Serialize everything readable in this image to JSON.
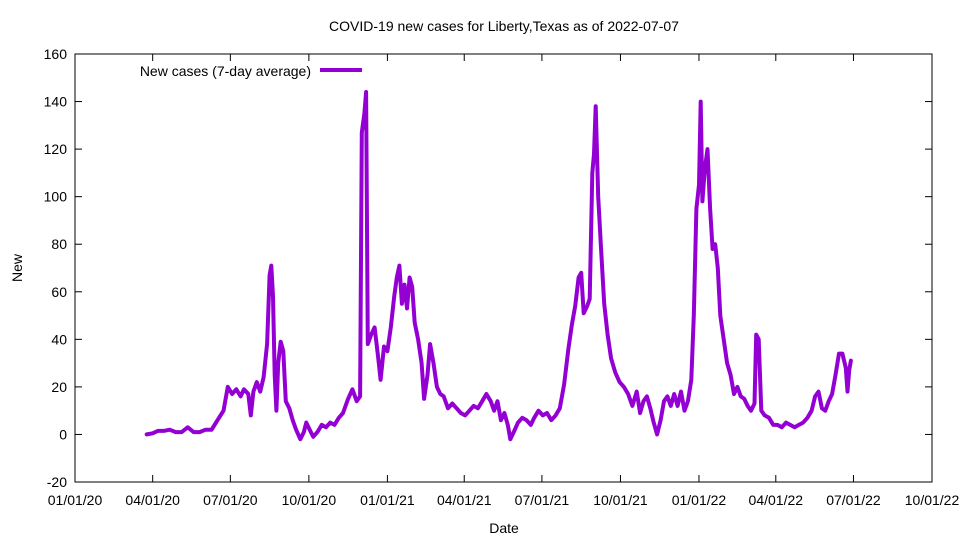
{
  "chart_data": {
    "type": "line",
    "title": "COVID-19 new cases for Liberty,Texas as of 2022-07-07",
    "xlabel": "Date",
    "ylabel": "New",
    "x_ticks": [
      "01/01/20",
      "04/01/20",
      "07/01/20",
      "10/01/20",
      "01/01/21",
      "04/01/21",
      "07/01/21",
      "10/01/21",
      "01/01/22",
      "04/01/22",
      "07/01/22",
      "10/01/22"
    ],
    "xlim": [
      "2020-01-01",
      "2022-10-01"
    ],
    "ylim": [
      -20,
      160
    ],
    "y_ticks": [
      -20,
      0,
      20,
      40,
      60,
      80,
      100,
      120,
      140,
      160
    ],
    "legend_position": "top-left",
    "line_color": "#9400d3",
    "series": [
      {
        "name": "New cases (7-day average)",
        "points": [
          [
            "2020-03-25",
            0
          ],
          [
            "2020-04-01",
            0.5
          ],
          [
            "2020-04-07",
            1.5
          ],
          [
            "2020-04-14",
            1.5
          ],
          [
            "2020-04-21",
            2
          ],
          [
            "2020-04-28",
            1
          ],
          [
            "2020-05-05",
            1
          ],
          [
            "2020-05-12",
            3
          ],
          [
            "2020-05-19",
            1
          ],
          [
            "2020-05-26",
            1
          ],
          [
            "2020-06-02",
            2
          ],
          [
            "2020-06-09",
            2
          ],
          [
            "2020-06-16",
            6
          ],
          [
            "2020-06-23",
            10
          ],
          [
            "2020-06-28",
            20
          ],
          [
            "2020-07-03",
            17
          ],
          [
            "2020-07-08",
            19
          ],
          [
            "2020-07-13",
            16
          ],
          [
            "2020-07-17",
            19
          ],
          [
            "2020-07-22",
            17
          ],
          [
            "2020-07-25",
            8
          ],
          [
            "2020-07-28",
            18
          ],
          [
            "2020-08-01",
            22
          ],
          [
            "2020-08-05",
            18
          ],
          [
            "2020-08-09",
            24
          ],
          [
            "2020-08-13",
            38
          ],
          [
            "2020-08-16",
            67
          ],
          [
            "2020-08-18",
            71
          ],
          [
            "2020-08-20",
            58
          ],
          [
            "2020-08-22",
            25
          ],
          [
            "2020-08-24",
            10
          ],
          [
            "2020-08-26",
            30
          ],
          [
            "2020-08-29",
            39
          ],
          [
            "2020-09-01",
            35
          ],
          [
            "2020-09-04",
            14
          ],
          [
            "2020-09-08",
            11
          ],
          [
            "2020-09-12",
            6
          ],
          [
            "2020-09-16",
            2
          ],
          [
            "2020-09-21",
            -2
          ],
          [
            "2020-09-25",
            1
          ],
          [
            "2020-09-28",
            5
          ],
          [
            "2020-10-02",
            2
          ],
          [
            "2020-10-06",
            -1
          ],
          [
            "2020-10-11",
            1
          ],
          [
            "2020-10-16",
            4
          ],
          [
            "2020-10-21",
            3
          ],
          [
            "2020-10-26",
            5
          ],
          [
            "2020-10-31",
            4
          ],
          [
            "2020-11-05",
            7
          ],
          [
            "2020-11-10",
            9
          ],
          [
            "2020-11-16",
            15
          ],
          [
            "2020-11-21",
            19
          ],
          [
            "2020-11-26",
            14
          ],
          [
            "2020-11-30",
            16
          ],
          [
            "2020-12-02",
            127
          ],
          [
            "2020-12-05",
            135
          ],
          [
            "2020-12-07",
            144
          ],
          [
            "2020-12-09",
            38
          ],
          [
            "2020-12-13",
            42
          ],
          [
            "2020-12-17",
            45
          ],
          [
            "2020-12-21",
            33
          ],
          [
            "2020-12-24",
            23
          ],
          [
            "2020-12-28",
            37
          ],
          [
            "2021-01-01",
            35
          ],
          [
            "2021-01-05",
            45
          ],
          [
            "2021-01-09",
            58
          ],
          [
            "2021-01-12",
            66
          ],
          [
            "2021-01-15",
            71
          ],
          [
            "2021-01-18",
            55
          ],
          [
            "2021-01-21",
            63
          ],
          [
            "2021-01-24",
            53
          ],
          [
            "2021-01-27",
            66
          ],
          [
            "2021-01-30",
            62
          ],
          [
            "2021-02-02",
            47
          ],
          [
            "2021-02-06",
            40
          ],
          [
            "2021-02-10",
            30
          ],
          [
            "2021-02-13",
            15
          ],
          [
            "2021-02-17",
            25
          ],
          [
            "2021-02-20",
            38
          ],
          [
            "2021-02-24",
            30
          ],
          [
            "2021-02-28",
            20
          ],
          [
            "2021-03-04",
            17
          ],
          [
            "2021-03-08",
            16
          ],
          [
            "2021-03-13",
            11
          ],
          [
            "2021-03-18",
            13
          ],
          [
            "2021-03-23",
            11
          ],
          [
            "2021-03-28",
            9
          ],
          [
            "2021-04-02",
            8
          ],
          [
            "2021-04-07",
            10
          ],
          [
            "2021-04-12",
            12
          ],
          [
            "2021-04-17",
            11
          ],
          [
            "2021-04-22",
            14
          ],
          [
            "2021-04-27",
            17
          ],
          [
            "2021-05-02",
            14
          ],
          [
            "2021-05-06",
            10
          ],
          [
            "2021-05-10",
            14
          ],
          [
            "2021-05-14",
            6
          ],
          [
            "2021-05-18",
            9
          ],
          [
            "2021-05-22",
            4
          ],
          [
            "2021-05-25",
            -2
          ],
          [
            "2021-05-29",
            1
          ],
          [
            "2021-06-03",
            5
          ],
          [
            "2021-06-08",
            7
          ],
          [
            "2021-06-13",
            6
          ],
          [
            "2021-06-18",
            4
          ],
          [
            "2021-06-22",
            7
          ],
          [
            "2021-06-27",
            10
          ],
          [
            "2021-07-02",
            8
          ],
          [
            "2021-07-07",
            9
          ],
          [
            "2021-07-12",
            6
          ],
          [
            "2021-07-17",
            8
          ],
          [
            "2021-07-22",
            11
          ],
          [
            "2021-07-27",
            21
          ],
          [
            "2021-08-01",
            36
          ],
          [
            "2021-08-05",
            46
          ],
          [
            "2021-08-09",
            54
          ],
          [
            "2021-08-13",
            66
          ],
          [
            "2021-08-16",
            68
          ],
          [
            "2021-08-19",
            51
          ],
          [
            "2021-08-23",
            54
          ],
          [
            "2021-08-26",
            57
          ],
          [
            "2021-08-29",
            110
          ],
          [
            "2021-08-31",
            118
          ],
          [
            "2021-09-02",
            138
          ],
          [
            "2021-09-05",
            100
          ],
          [
            "2021-09-08",
            80
          ],
          [
            "2021-09-12",
            55
          ],
          [
            "2021-09-16",
            42
          ],
          [
            "2021-09-20",
            32
          ],
          [
            "2021-09-25",
            26
          ],
          [
            "2021-09-30",
            22
          ],
          [
            "2021-10-05",
            20
          ],
          [
            "2021-10-10",
            17
          ],
          [
            "2021-10-15",
            12
          ],
          [
            "2021-10-20",
            18
          ],
          [
            "2021-10-24",
            9
          ],
          [
            "2021-10-28",
            14
          ],
          [
            "2021-11-01",
            16
          ],
          [
            "2021-11-05",
            11
          ],
          [
            "2021-11-09",
            5
          ],
          [
            "2021-11-13",
            0
          ],
          [
            "2021-11-17",
            6
          ],
          [
            "2021-11-21",
            14
          ],
          [
            "2021-11-25",
            16
          ],
          [
            "2021-11-29",
            12
          ],
          [
            "2021-12-03",
            17
          ],
          [
            "2021-12-07",
            12
          ],
          [
            "2021-12-11",
            18
          ],
          [
            "2021-12-15",
            10
          ],
          [
            "2021-12-19",
            14
          ],
          [
            "2021-12-23",
            23
          ],
          [
            "2021-12-26",
            50
          ],
          [
            "2021-12-29",
            95
          ],
          [
            "2022-01-01",
            105
          ],
          [
            "2022-01-03",
            140
          ],
          [
            "2022-01-05",
            98
          ],
          [
            "2022-01-08",
            112
          ],
          [
            "2022-01-11",
            120
          ],
          [
            "2022-01-14",
            95
          ],
          [
            "2022-01-17",
            78
          ],
          [
            "2022-01-20",
            80
          ],
          [
            "2022-01-23",
            70
          ],
          [
            "2022-01-26",
            50
          ],
          [
            "2022-01-30",
            40
          ],
          [
            "2022-02-03",
            30
          ],
          [
            "2022-02-07",
            25
          ],
          [
            "2022-02-11",
            17
          ],
          [
            "2022-02-15",
            20
          ],
          [
            "2022-02-19",
            16
          ],
          [
            "2022-02-23",
            15
          ],
          [
            "2022-02-27",
            12
          ],
          [
            "2022-03-03",
            10
          ],
          [
            "2022-03-07",
            13
          ],
          [
            "2022-03-09",
            42
          ],
          [
            "2022-03-12",
            40
          ],
          [
            "2022-03-15",
            10
          ],
          [
            "2022-03-19",
            8
          ],
          [
            "2022-03-24",
            7
          ],
          [
            "2022-03-29",
            4
          ],
          [
            "2022-04-03",
            4
          ],
          [
            "2022-04-08",
            3
          ],
          [
            "2022-04-13",
            5
          ],
          [
            "2022-04-18",
            4
          ],
          [
            "2022-04-23",
            3
          ],
          [
            "2022-04-28",
            4
          ],
          [
            "2022-05-03",
            5
          ],
          [
            "2022-05-08",
            7
          ],
          [
            "2022-05-13",
            10
          ],
          [
            "2022-05-17",
            16
          ],
          [
            "2022-05-21",
            18
          ],
          [
            "2022-05-25",
            11
          ],
          [
            "2022-05-29",
            10
          ],
          [
            "2022-06-02",
            14
          ],
          [
            "2022-06-06",
            17
          ],
          [
            "2022-06-10",
            25
          ],
          [
            "2022-06-14",
            34
          ],
          [
            "2022-06-18",
            34
          ],
          [
            "2022-06-22",
            28
          ],
          [
            "2022-06-24",
            18
          ],
          [
            "2022-06-26",
            27
          ],
          [
            "2022-06-28",
            31
          ]
        ]
      }
    ]
  }
}
